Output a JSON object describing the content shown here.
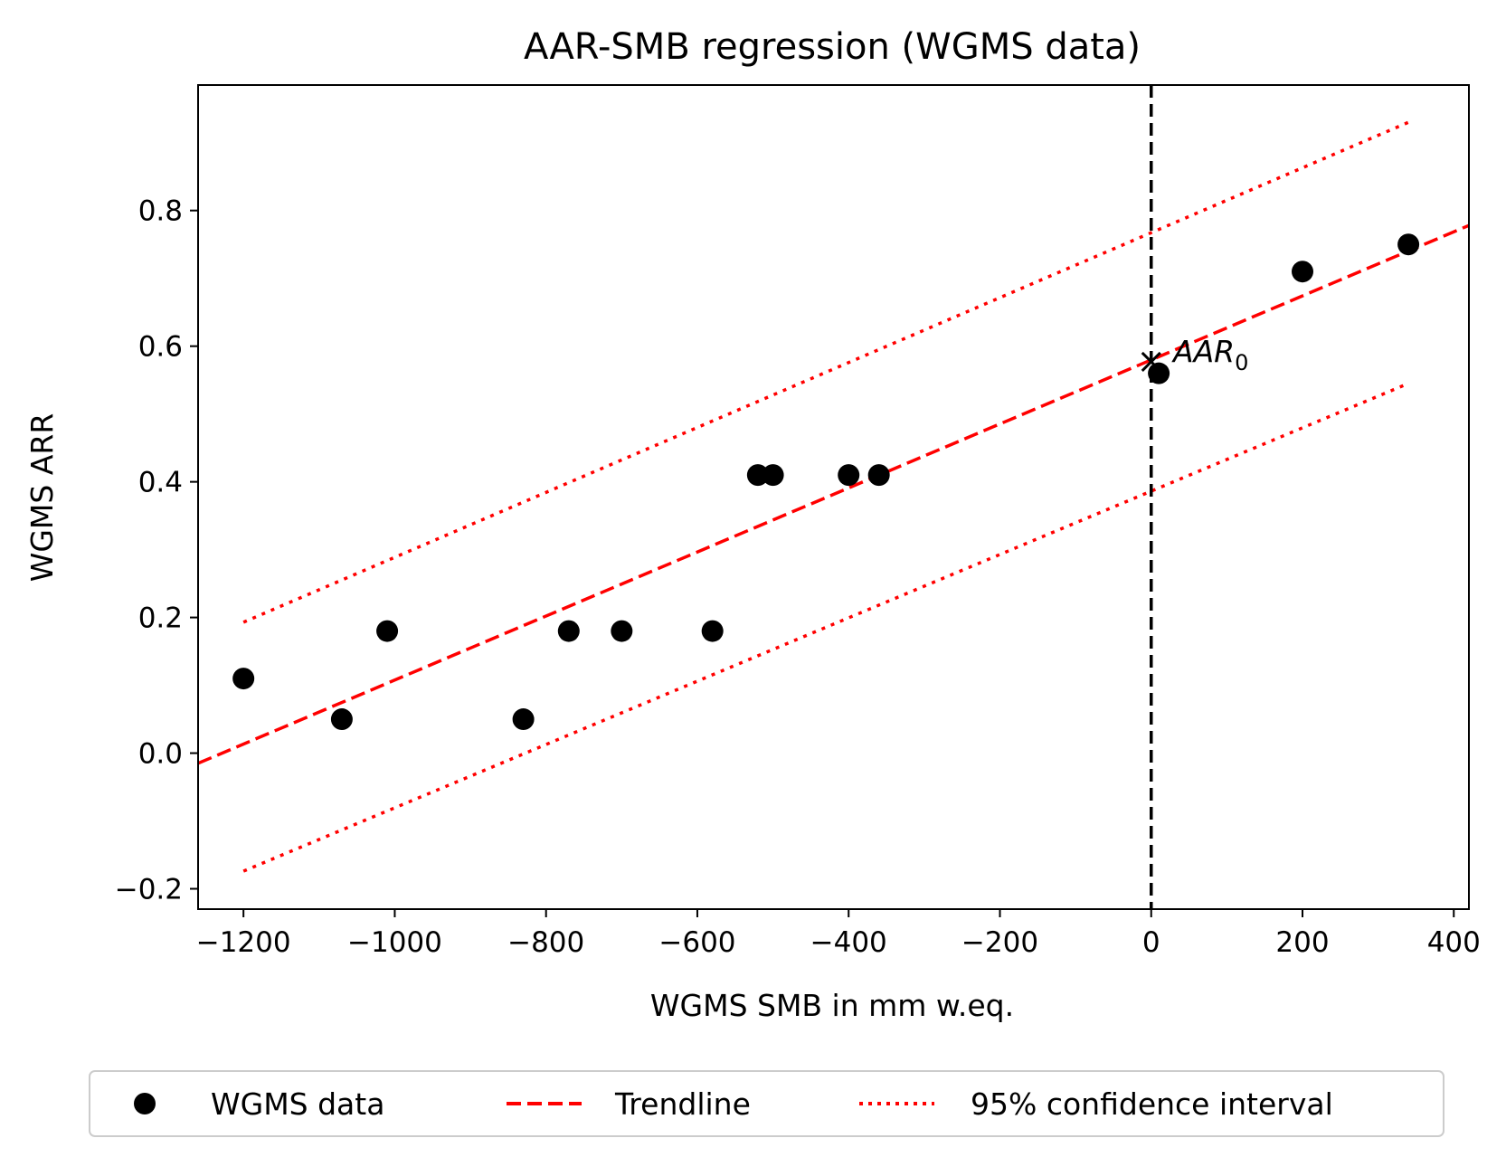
{
  "chart_data": {
    "type": "scatter",
    "title": "AAR-SMB regression (WGMS data)",
    "xlabel": "WGMS SMB in mm w.eq.",
    "ylabel": "WGMS ARR",
    "xlim": [
      -1260,
      420
    ],
    "ylim": [
      -0.23,
      0.985
    ],
    "xticks": [
      -1200,
      -1000,
      -800,
      -600,
      -400,
      -200,
      0,
      200,
      400
    ],
    "yticks": [
      -0.2,
      0.0,
      0.2,
      0.4,
      0.6,
      0.8
    ],
    "xtick_labels": [
      "−1200",
      "−1000",
      "−800",
      "−600",
      "−400",
      "−200",
      "0",
      "200",
      "400"
    ],
    "ytick_labels": [
      "−0.2",
      "0.0",
      "0.2",
      "0.4",
      "0.6",
      "0.8"
    ],
    "grid": false,
    "legend_position": "bottom-center-outside",
    "series": [
      {
        "name": "WGMS data",
        "kind": "scatter",
        "color": "#000000",
        "points": [
          [
            -1200,
            0.11
          ],
          [
            -1070,
            0.05
          ],
          [
            -1010,
            0.18
          ],
          [
            -830,
            0.05
          ],
          [
            -770,
            0.18
          ],
          [
            -700,
            0.18
          ],
          [
            -580,
            0.18
          ],
          [
            -520,
            0.41
          ],
          [
            -500,
            0.41
          ],
          [
            -400,
            0.41
          ],
          [
            -360,
            0.41
          ],
          [
            10,
            0.56
          ],
          [
            200,
            0.71
          ],
          [
            340,
            0.75
          ]
        ]
      },
      {
        "name": "Trendline",
        "kind": "line",
        "style": "dashed",
        "color": "#ff0000",
        "points": [
          [
            -1260,
            -0.015
          ],
          [
            420,
            0.778
          ]
        ]
      },
      {
        "name": "95% confidence interval",
        "kind": "line",
        "style": "dotted",
        "color": "#ff0000",
        "upper": [
          [
            -1200,
            0.193
          ],
          [
            340,
            0.93
          ]
        ],
        "lower": [
          [
            -1200,
            -0.174
          ],
          [
            340,
            0.545
          ]
        ]
      }
    ],
    "vline": {
      "x": 0,
      "style": "dashed",
      "color": "#000000"
    },
    "annotation": {
      "x": 0,
      "y": 0.577,
      "marker": "x",
      "text": "AAR",
      "subscript": "0"
    }
  }
}
